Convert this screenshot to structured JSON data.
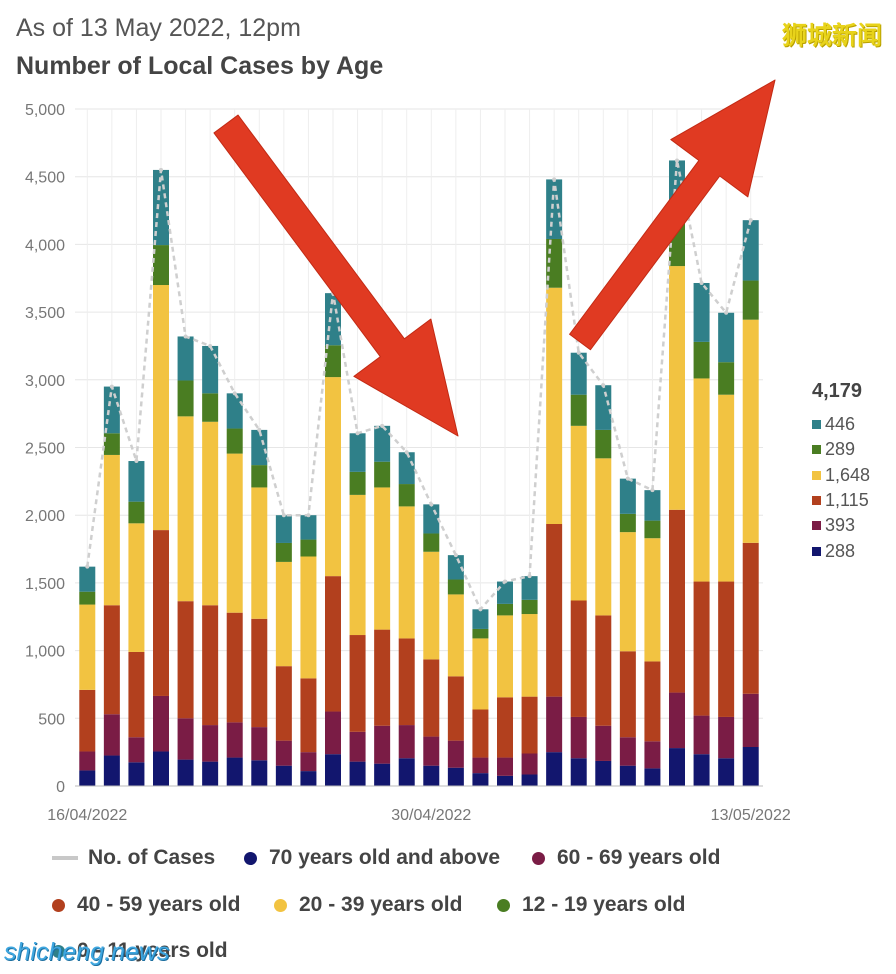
{
  "header": {
    "subtitle": "As of 13 May 2022, 12pm",
    "title": "Number of Local Cases by Age",
    "watermark": "狮城新闻",
    "footer_watermark": "shicheng.news"
  },
  "side_summary": {
    "total": "4,179",
    "items": [
      {
        "label": "446",
        "color": "#2f8089"
      },
      {
        "label": "289",
        "color": "#4a7d22"
      },
      {
        "label": "1,648",
        "color": "#f2c341"
      },
      {
        "label": "1,115",
        "color": "#b2401e"
      },
      {
        "label": "393",
        "color": "#7a1c45"
      },
      {
        "label": "288",
        "color": "#12166e"
      }
    ]
  },
  "legend": [
    {
      "label": "No. of Cases",
      "kind": "line",
      "color": "#c8c8c8"
    },
    {
      "label": "70 years old and above",
      "kind": "dot",
      "color": "#12166e"
    },
    {
      "label": "60 - 69 years old",
      "kind": "dot",
      "color": "#7a1c45"
    },
    {
      "label": "40 - 59 years old",
      "kind": "dot",
      "color": "#b2401e"
    },
    {
      "label": "20 - 39 years old",
      "kind": "dot",
      "color": "#f2c341"
    },
    {
      "label": "12 - 19 years old",
      "kind": "dot",
      "color": "#4a7d22"
    },
    {
      "label": "0 - 11 years old",
      "kind": "dot",
      "color": "#2f8089"
    }
  ],
  "chart_data": {
    "type": "bar",
    "stacked": true,
    "title": "Number of Local Cases by Age",
    "ylim": [
      0,
      5000
    ],
    "yticks": [
      0,
      500,
      1000,
      1500,
      2000,
      2500,
      3000,
      3500,
      4000,
      4500,
      5000
    ],
    "ytick_labels": [
      "0",
      "500",
      "1,000",
      "1,500",
      "2,000",
      "2,500",
      "3,000",
      "3,500",
      "4,000",
      "4,500",
      "5,000"
    ],
    "x_labels": [
      {
        "index": 0,
        "label": "16/04/2022"
      },
      {
        "index": 14,
        "label": "30/04/2022"
      },
      {
        "index": 27,
        "label": "13/05/2022"
      }
    ],
    "categories": [
      "16/04/2022",
      "17/04",
      "18/04",
      "19/04",
      "20/04",
      "21/04",
      "22/04",
      "23/04",
      "24/04",
      "25/04",
      "26/04",
      "27/04",
      "28/04",
      "29/04",
      "30/04/2022",
      "01/05",
      "02/05",
      "03/05",
      "04/05",
      "05/05",
      "06/05",
      "07/05",
      "08/05",
      "09/05",
      "10/05",
      "11/05",
      "12/05",
      "13/05/2022"
    ],
    "series": [
      {
        "name": "70 years old and above",
        "color": "#12166e",
        "values": [
          115,
          225,
          175,
          255,
          195,
          180,
          210,
          190,
          150,
          110,
          235,
          180,
          165,
          205,
          150,
          135,
          95,
          75,
          85,
          250,
          205,
          185,
          150,
          130,
          280,
          235,
          205,
          288
        ]
      },
      {
        "name": "60 - 69 years old",
        "color": "#7a1c45",
        "values": [
          140,
          305,
          185,
          410,
          305,
          270,
          260,
          245,
          185,
          140,
          315,
          220,
          280,
          245,
          215,
          200,
          115,
          135,
          155,
          410,
          305,
          260,
          210,
          200,
          410,
          285,
          305,
          393
        ]
      },
      {
        "name": "40 - 59 years old",
        "color": "#b2401e",
        "values": [
          455,
          805,
          630,
          1225,
          865,
          885,
          810,
          800,
          550,
          545,
          1000,
          715,
          710,
          640,
          570,
          475,
          355,
          445,
          420,
          1275,
          860,
          815,
          635,
          590,
          1350,
          990,
          1000,
          1115
        ]
      },
      {
        "name": "20 - 39 years old",
        "color": "#f2c341",
        "values": [
          630,
          1110,
          950,
          1810,
          1365,
          1355,
          1175,
          970,
          770,
          900,
          1470,
          1035,
          1050,
          975,
          795,
          605,
          525,
          605,
          610,
          1745,
          1290,
          1160,
          880,
          910,
          1800,
          1500,
          1380,
          1648
        ]
      },
      {
        "name": "12 - 19 years old",
        "color": "#4a7d22",
        "values": [
          95,
          160,
          160,
          295,
          265,
          210,
          185,
          165,
          140,
          125,
          235,
          170,
          190,
          165,
          135,
          110,
          70,
          85,
          105,
          360,
          230,
          210,
          135,
          130,
          385,
          270,
          240,
          289
        ]
      },
      {
        "name": "0 - 11 years old",
        "color": "#2f8089",
        "values": [
          185,
          345,
          300,
          555,
          325,
          350,
          260,
          260,
          205,
          180,
          385,
          285,
          265,
          235,
          215,
          180,
          145,
          165,
          175,
          440,
          310,
          330,
          260,
          225,
          395,
          435,
          365,
          446
        ]
      }
    ],
    "total_line": {
      "name": "No. of Cases",
      "values": [
        1620,
        2950,
        2400,
        4550,
        3320,
        3250,
        2900,
        2630,
        2000,
        2000,
        3640,
        2605,
        2660,
        2465,
        2080,
        1705,
        1305,
        1510,
        1550,
        4480,
        3200,
        2960,
        2270,
        2185,
        4620,
        3715,
        3495,
        4179
      ]
    },
    "annotations": [
      {
        "type": "arrow",
        "direction": "down-right",
        "color": "#e03a22",
        "from_index": 6,
        "to_index": 15
      },
      {
        "type": "arrow",
        "direction": "up-right",
        "color": "#e03a22",
        "from_index": 20,
        "to_index": 28
      }
    ]
  }
}
